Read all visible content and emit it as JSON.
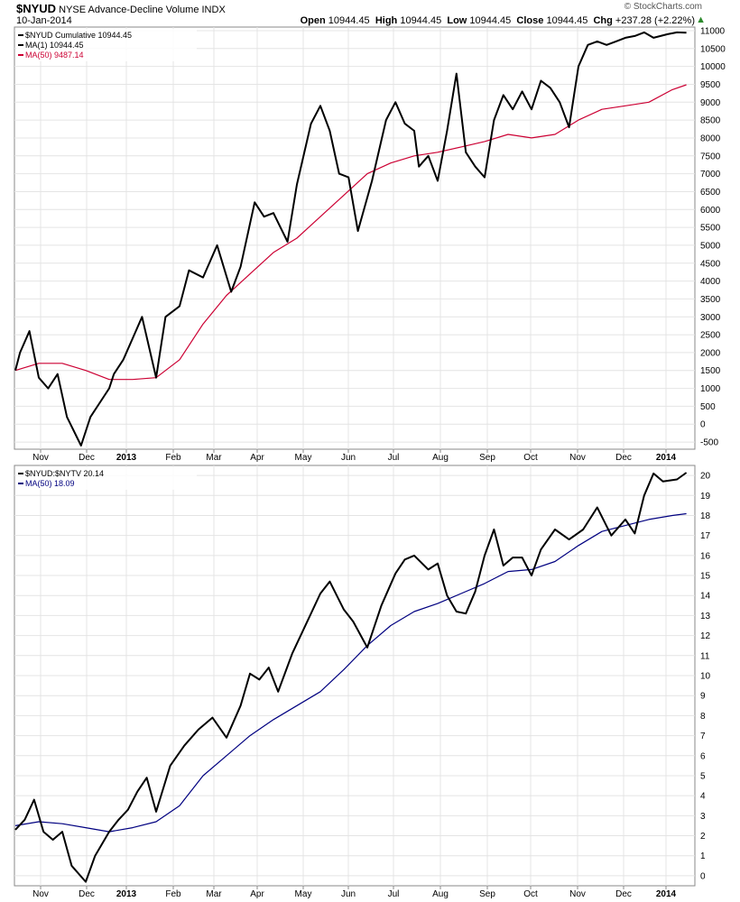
{
  "header": {
    "symbol": "$NYUD",
    "description": "NYSE Advance-Decline Volume INDX",
    "date": "10-Jan-2014",
    "watermark": "© StockCharts.com",
    "open_label": "Open",
    "open": "10944.45",
    "high_label": "High",
    "high": "10944.45",
    "low_label": "Low",
    "low": "10944.45",
    "close_label": "Close",
    "close": "10944.45",
    "chg_label": "Chg",
    "chg": "+237.28 (+2.22%)"
  },
  "colors": {
    "price": "#000000",
    "ma_top": "#cc0033",
    "ma_bottom": "#000080",
    "up_arrow": "#2e8b2e"
  },
  "chart_data": [
    {
      "type": "line",
      "legend": [
        "$NYUD Cumulative 10944.45",
        "MA(1) 10944.45",
        "MA(50) 9487.14"
      ],
      "x_labels": [
        "Nov",
        "Dec",
        "2013",
        "Feb",
        "Mar",
        "Apr",
        "May",
        "Jun",
        "Jul",
        "Aug",
        "Sep",
        "Oct",
        "Nov",
        "Dec",
        "2014"
      ],
      "y_ticks": [
        -500,
        0,
        500,
        1000,
        1500,
        2000,
        2500,
        3000,
        3500,
        4000,
        4500,
        5000,
        5500,
        6000,
        6500,
        7000,
        7500,
        8000,
        8500,
        9000,
        9500,
        10000,
        10500,
        11000
      ],
      "ylim": [
        -700,
        11100
      ],
      "series": [
        {
          "name": "$NYUD Cumulative",
          "x": [
            0.0,
            0.1,
            0.3,
            0.5,
            0.7,
            0.9,
            1.1,
            1.4,
            1.6,
            1.9,
            2.0,
            2.1,
            2.3,
            2.5,
            2.7,
            3.0,
            3.2,
            3.5,
            3.7,
            4.0,
            4.3,
            4.6,
            4.8,
            5.1,
            5.3,
            5.5,
            5.8,
            6.0,
            6.3,
            6.5,
            6.7,
            6.9,
            7.1,
            7.3,
            7.6,
            7.9,
            8.1,
            8.3,
            8.5,
            8.6,
            8.8,
            9.0,
            9.2,
            9.4,
            9.6,
            9.8,
            10.0,
            10.2,
            10.4,
            10.6,
            10.8,
            11.0,
            11.2,
            11.4,
            11.6,
            11.8,
            12.0,
            12.2,
            12.4,
            12.6,
            12.8,
            13.0,
            13.2,
            13.4,
            13.6,
            13.9,
            14.1,
            14.3
          ],
          "y": [
            1500,
            2000,
            2600,
            1300,
            1000,
            1400,
            200,
            -600,
            200,
            800,
            1000,
            1400,
            1800,
            2400,
            3000,
            1300,
            3000,
            3300,
            4300,
            4100,
            5000,
            3700,
            4400,
            6200,
            5800,
            5900,
            5100,
            6700,
            8400,
            8900,
            8200,
            7000,
            6900,
            5400,
            6800,
            8500,
            9000,
            8400,
            8200,
            7200,
            7500,
            6800,
            8200,
            9800,
            7600,
            7200,
            6900,
            8500,
            9200,
            8800,
            9300,
            8800,
            9600,
            9400,
            9000,
            8300,
            10000,
            10600,
            10700,
            10600,
            10700,
            10800,
            10850,
            10950,
            10800,
            10900,
            10950,
            10944
          ]
        },
        {
          "name": "MA(50)",
          "x": [
            0.0,
            0.5,
            1.0,
            1.5,
            2.0,
            2.5,
            3.0,
            3.5,
            4.0,
            4.5,
            5.0,
            5.5,
            6.0,
            6.5,
            7.0,
            7.5,
            8.0,
            8.5,
            9.0,
            9.5,
            10.0,
            10.5,
            11.0,
            11.5,
            12.0,
            12.5,
            13.0,
            13.5,
            14.0,
            14.3
          ],
          "y": [
            1500,
            1700,
            1700,
            1500,
            1250,
            1250,
            1300,
            1800,
            2800,
            3600,
            4200,
            4800,
            5200,
            5800,
            6400,
            7000,
            7300,
            7500,
            7600,
            7750,
            7900,
            8100,
            8000,
            8100,
            8500,
            8800,
            8900,
            9000,
            9350,
            9487
          ]
        }
      ]
    },
    {
      "type": "line",
      "legend": [
        "$NYUD:$NYTV 20.14",
        "MA(50) 18.09"
      ],
      "x_labels": [
        "Nov",
        "Dec",
        "2013",
        "Feb",
        "Mar",
        "Apr",
        "May",
        "Jun",
        "Jul",
        "Aug",
        "Sep",
        "Oct",
        "Nov",
        "Dec",
        "2014"
      ],
      "y_ticks": [
        0,
        1,
        2,
        3,
        4,
        5,
        6,
        7,
        8,
        9,
        10,
        11,
        12,
        13,
        14,
        15,
        16,
        17,
        18,
        19,
        20
      ],
      "ylim": [
        -0.5,
        20.5
      ],
      "series": [
        {
          "name": "$NYUD:$NYTV",
          "x": [
            0.0,
            0.2,
            0.4,
            0.6,
            0.8,
            1.0,
            1.2,
            1.5,
            1.7,
            2.0,
            2.2,
            2.4,
            2.6,
            2.8,
            3.0,
            3.3,
            3.6,
            3.9,
            4.2,
            4.5,
            4.8,
            5.0,
            5.2,
            5.4,
            5.6,
            5.9,
            6.2,
            6.5,
            6.7,
            7.0,
            7.2,
            7.5,
            7.8,
            8.1,
            8.3,
            8.5,
            8.8,
            9.0,
            9.2,
            9.4,
            9.6,
            9.8,
            10.0,
            10.2,
            10.4,
            10.6,
            10.8,
            11.0,
            11.2,
            11.5,
            11.8,
            12.1,
            12.4,
            12.7,
            13.0,
            13.2,
            13.4,
            13.6,
            13.8,
            14.1,
            14.3
          ],
          "y": [
            2.3,
            2.8,
            3.8,
            2.2,
            1.8,
            2.2,
            0.5,
            -0.3,
            1.0,
            2.2,
            2.8,
            3.3,
            4.2,
            4.9,
            3.2,
            5.5,
            6.5,
            7.3,
            7.9,
            6.9,
            8.5,
            10.1,
            9.8,
            10.4,
            9.2,
            11.1,
            12.6,
            14.1,
            14.7,
            13.3,
            12.7,
            11.4,
            13.5,
            15.1,
            15.8,
            16.0,
            15.3,
            15.6,
            14.0,
            13.2,
            13.1,
            14.2,
            16.0,
            17.3,
            15.5,
            15.9,
            15.9,
            15.0,
            16.3,
            17.3,
            16.8,
            17.3,
            18.4,
            17.0,
            17.8,
            17.1,
            19.0,
            20.1,
            19.7,
            19.8,
            20.14
          ]
        },
        {
          "name": "MA(50)",
          "x": [
            0.0,
            0.5,
            1.0,
            1.5,
            2.0,
            2.5,
            3.0,
            3.5,
            4.0,
            4.5,
            5.0,
            5.5,
            6.0,
            6.5,
            7.0,
            7.5,
            8.0,
            8.5,
            9.0,
            9.5,
            10.0,
            10.5,
            11.0,
            11.5,
            12.0,
            12.5,
            13.0,
            13.5,
            14.0,
            14.3
          ],
          "y": [
            2.5,
            2.7,
            2.6,
            2.4,
            2.2,
            2.4,
            2.7,
            3.5,
            5.0,
            6.0,
            7.0,
            7.8,
            8.5,
            9.2,
            10.3,
            11.5,
            12.5,
            13.2,
            13.6,
            14.1,
            14.6,
            15.2,
            15.3,
            15.7,
            16.5,
            17.2,
            17.5,
            17.8,
            18.0,
            18.09
          ]
        }
      ]
    }
  ]
}
